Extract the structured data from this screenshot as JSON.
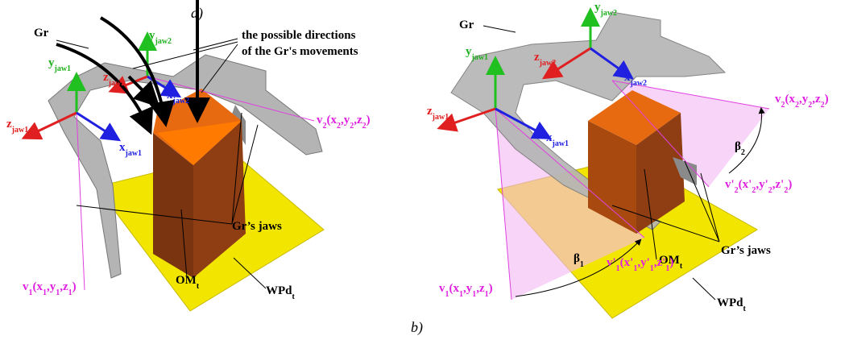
{
  "panels": [
    {
      "caption": "a)",
      "labels": [
        {
          "parts": [
            "Gr"
          ]
        },
        {
          "parts": [
            "the possible directions"
          ]
        },
        {
          "parts": [
            "of the Gr's movements"
          ]
        },
        {
          "parts": [
            "y",
            {
              "sub": "jaw2"
            }
          ]
        },
        {
          "parts": [
            "y",
            {
              "sub": "jaw1"
            }
          ]
        },
        {
          "parts": [
            "z",
            {
              "sub": "jaw2"
            }
          ]
        },
        {
          "parts": [
            "x",
            {
              "sub": "jaw2"
            }
          ]
        },
        {
          "parts": [
            "z",
            {
              "sub": "jaw1"
            }
          ]
        },
        {
          "parts": [
            "x",
            {
              "sub": "jaw1"
            }
          ]
        },
        {
          "parts": [
            "v",
            {
              "sub": "2"
            },
            "(x",
            {
              "sub": "2"
            },
            ",y",
            {
              "sub": "2"
            },
            ",z",
            {
              "sub": "2"
            },
            ")"
          ]
        },
        {
          "parts": [
            "Gr’s jaws"
          ]
        },
        {
          "parts": [
            "v",
            {
              "sub": "1"
            },
            "(x",
            {
              "sub": "1"
            },
            ",y",
            {
              "sub": "1"
            },
            ",z",
            {
              "sub": "1"
            },
            ")"
          ]
        },
        {
          "parts": [
            "OM",
            {
              "sub": "t"
            }
          ]
        },
        {
          "parts": [
            "WPd",
            {
              "sub": "t"
            }
          ]
        }
      ]
    },
    {
      "caption": "b)",
      "labels": [
        {
          "parts": [
            "Gr"
          ]
        },
        {
          "parts": [
            "y",
            {
              "sub": "jaw2"
            }
          ]
        },
        {
          "parts": [
            "y",
            {
              "sub": "jaw1"
            }
          ]
        },
        {
          "parts": [
            "z",
            {
              "sub": "jaw2"
            }
          ]
        },
        {
          "parts": [
            "x",
            {
              "sub": "jaw2"
            }
          ]
        },
        {
          "parts": [
            "z",
            {
              "sub": "jaw1"
            }
          ]
        },
        {
          "parts": [
            "x",
            {
              "sub": "jaw1"
            }
          ]
        },
        {
          "parts": [
            "v",
            {
              "sub": "2"
            },
            "(x",
            {
              "sub": "2"
            },
            ",y",
            {
              "sub": "2"
            },
            ",z",
            {
              "sub": "2"
            },
            ")"
          ]
        },
        {
          "parts": [
            "β",
            {
              "sub": "2"
            }
          ]
        },
        {
          "parts": [
            "v'",
            {
              "sub": "2"
            },
            "(x'",
            {
              "sub": "2"
            },
            ",y'",
            {
              "sub": "2"
            },
            ",z'",
            {
              "sub": "2"
            },
            ")"
          ]
        },
        {
          "parts": [
            "OM",
            {
              "sub": "t"
            }
          ]
        },
        {
          "parts": [
            "β",
            {
              "sub": "1"
            }
          ]
        },
        {
          "parts": [
            "v'",
            {
              "sub": "1"
            },
            "(x'",
            {
              "sub": "1"
            },
            ",y'",
            {
              "sub": "1"
            },
            ",z'",
            {
              "sub": "1"
            },
            ")"
          ]
        },
        {
          "parts": [
            "v",
            {
              "sub": "1"
            },
            "(x",
            {
              "sub": "1"
            },
            ",y",
            {
              "sub": "1"
            },
            ",z",
            {
              "sub": "1"
            },
            ")"
          ]
        },
        {
          "parts": [
            "Gr’s jaws"
          ]
        },
        {
          "parts": [
            "WPd",
            {
              "sub": "t"
            }
          ]
        }
      ]
    }
  ]
}
